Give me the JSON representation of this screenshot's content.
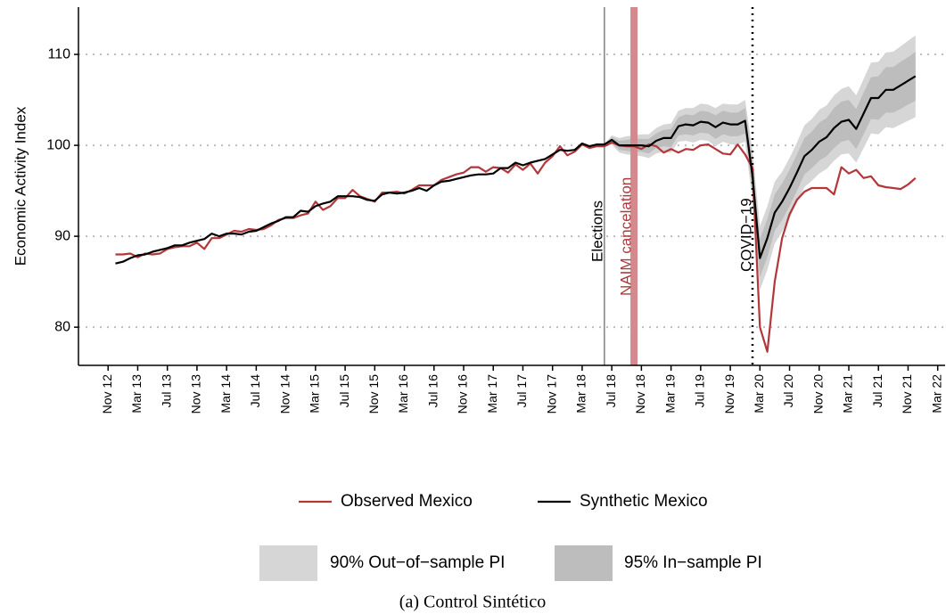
{
  "chart_data": {
    "type": "line",
    "ylabel": "Economic Activity Index",
    "caption": "(a) Control Sintético",
    "ylim": [
      75.8,
      115.2
    ],
    "yticks": [
      80,
      90,
      100,
      110
    ],
    "xlim": [
      "Jul 12",
      "Apr 22"
    ],
    "xticks": [
      "Nov 12",
      "Mar 13",
      "Jul 13",
      "Nov 13",
      "Mar 14",
      "Jul 14",
      "Nov 14",
      "Mar 15",
      "Jul 15",
      "Nov 15",
      "Mar 16",
      "Jul 16",
      "Nov 16",
      "Mar 17",
      "Jul 17",
      "Nov 17",
      "Mar 18",
      "Jul 18",
      "Nov 18",
      "Mar 19",
      "Jul 19",
      "Nov 19",
      "Mar 20",
      "Jul 20",
      "Nov 20",
      "Mar 21",
      "Jul 21",
      "Nov 21",
      "Mar 22"
    ],
    "grid": true,
    "x": [
      "Dec 12",
      "Jan 13",
      "Feb 13",
      "Mar 13",
      "Apr 13",
      "May 13",
      "Jun 13",
      "Jul 13",
      "Aug 13",
      "Sep 13",
      "Oct 13",
      "Nov 13",
      "Dec 13",
      "Jan 14",
      "Feb 14",
      "Mar 14",
      "Apr 14",
      "May 14",
      "Jun 14",
      "Jul 14",
      "Aug 14",
      "Sep 14",
      "Oct 14",
      "Nov 14",
      "Dec 14",
      "Jan 15",
      "Feb 15",
      "Mar 15",
      "Apr 15",
      "May 15",
      "Jun 15",
      "Jul 15",
      "Aug 15",
      "Sep 15",
      "Oct 15",
      "Nov 15",
      "Dec 15",
      "Jan 16",
      "Feb 16",
      "Mar 16",
      "Apr 16",
      "May 16",
      "Jun 16",
      "Jul 16",
      "Aug 16",
      "Sep 16",
      "Oct 16",
      "Nov 16",
      "Dec 16",
      "Jan 17",
      "Feb 17",
      "Mar 17",
      "Apr 17",
      "May 17",
      "Jun 17",
      "Jul 17",
      "Aug 17",
      "Sep 17",
      "Oct 17",
      "Nov 17",
      "Dec 17",
      "Jan 18",
      "Feb 18",
      "Mar 18",
      "Apr 18",
      "May 18",
      "Jun 18",
      "Jul 18",
      "Aug 18",
      "Sep 18",
      "Oct 18",
      "Nov 18",
      "Dec 18",
      "Jan 19",
      "Feb 19",
      "Mar 19",
      "Apr 19",
      "May 19",
      "Jun 19",
      "Jul 19",
      "Aug 19",
      "Sep 19",
      "Oct 19",
      "Nov 19",
      "Dec 19",
      "Jan 20",
      "Feb 20",
      "Mar 20",
      "Apr 20",
      "May 20",
      "Jun 20",
      "Jul 20",
      "Aug 20",
      "Sep 20",
      "Oct 20",
      "Nov 20",
      "Dec 20",
      "Jan 21",
      "Feb 21",
      "Mar 21",
      "Apr 21",
      "May 21",
      "Jun 21",
      "Jul 21",
      "Aug 21",
      "Sep 21",
      "Oct 21",
      "Nov 21",
      "Dec 21"
    ],
    "series": [
      {
        "name": "Observed Mexico",
        "color": "#b2373a",
        "values": [
          88.0,
          88.0,
          88.1,
          87.7,
          88.1,
          88.0,
          88.1,
          88.6,
          88.8,
          88.9,
          88.9,
          89.3,
          88.6,
          89.8,
          89.8,
          90.2,
          90.6,
          90.5,
          90.8,
          90.7,
          90.8,
          91.2,
          91.8,
          92.0,
          92.0,
          92.3,
          92.5,
          93.8,
          92.9,
          93.3,
          94.2,
          94.2,
          95.1,
          94.4,
          94.1,
          93.8,
          94.8,
          94.8,
          94.9,
          94.7,
          95.1,
          95.6,
          95.6,
          95.6,
          96.2,
          96.5,
          96.8,
          97.0,
          97.6,
          97.6,
          97.1,
          97.6,
          97.5,
          97.0,
          97.9,
          97.3,
          98.0,
          96.9,
          98.1,
          98.8,
          99.9,
          98.9,
          99.3,
          100.1,
          99.7,
          99.9,
          99.9,
          100.3,
          100.0,
          99.9,
          99.9,
          99.6,
          100.1,
          99.9,
          99.2,
          99.6,
          99.2,
          99.6,
          99.5,
          100.0,
          100.1,
          99.6,
          99.1,
          99.0,
          100.1,
          99.0,
          97.5,
          80.0,
          77.3,
          85.0,
          89.8,
          92.4,
          94.0,
          94.9,
          95.3,
          95.3,
          95.3,
          94.6,
          97.6,
          96.9,
          97.3,
          96.4,
          96.6,
          95.6,
          95.4,
          95.3,
          95.2,
          95.7,
          96.4
        ]
      },
      {
        "name": "Synthetic Mexico",
        "color": "#000000",
        "values": [
          87.0,
          87.2,
          87.6,
          87.9,
          88.0,
          88.3,
          88.5,
          88.7,
          89.0,
          89.0,
          89.3,
          89.5,
          89.7,
          90.3,
          90.0,
          90.3,
          90.3,
          90.2,
          90.5,
          90.6,
          91.0,
          91.4,
          91.7,
          92.1,
          92.1,
          92.8,
          92.7,
          93.3,
          93.6,
          93.8,
          94.4,
          94.4,
          94.4,
          94.3,
          94.0,
          93.9,
          94.6,
          94.8,
          94.7,
          94.8,
          95.0,
          95.3,
          95.0,
          95.6,
          96.0,
          96.1,
          96.3,
          96.5,
          96.7,
          96.8,
          96.8,
          96.9,
          97.5,
          97.5,
          98.1,
          97.8,
          98.1,
          98.3,
          98.5,
          99.0,
          99.5,
          99.4,
          99.5,
          100.2,
          99.9,
          100.1,
          100.1,
          100.6,
          100.0,
          100.0,
          100.0,
          100.0,
          99.9,
          100.5,
          100.8,
          100.8,
          102.1,
          102.3,
          102.2,
          102.6,
          102.5,
          102.0,
          102.5,
          102.3,
          102.3,
          102.7,
          96.6,
          87.6,
          89.8,
          92.6,
          93.8,
          95.3,
          97.0,
          98.8,
          99.5,
          100.4,
          100.9,
          101.9,
          102.6,
          102.8,
          101.8,
          103.5,
          105.2,
          105.2,
          106.1,
          106.1,
          106.6,
          107.1,
          107.6
        ]
      }
    ],
    "bands": [
      {
        "name": "90% Out−of−sample PI",
        "color": "#d6d6d6",
        "x": [
          "Jun 18",
          "Jul 18",
          "Aug 18",
          "Sep 18",
          "Oct 18",
          "Nov 18",
          "Dec 18",
          "Jan 19",
          "Feb 19",
          "Mar 19",
          "Apr 19",
          "May 19",
          "Jun 19",
          "Jul 19",
          "Aug 19",
          "Sep 19",
          "Oct 19",
          "Nov 19",
          "Dec 19",
          "Jan 20",
          "Feb 20",
          "Mar 20",
          "Apr 20",
          "May 20",
          "Jun 20",
          "Jul 20",
          "Aug 20",
          "Sep 20",
          "Oct 20",
          "Nov 20",
          "Dec 20",
          "Jan 21",
          "Feb 21",
          "Mar 21",
          "Apr 21",
          "May 21",
          "Jun 21",
          "Jul 21",
          "Aug 21",
          "Sep 21",
          "Oct 21",
          "Nov 21",
          "Dec 21"
        ],
        "lower": [
          100.1,
          100.1,
          99.2,
          99.0,
          98.9,
          98.8,
          98.6,
          99.1,
          99.3,
          99.2,
          100.4,
          100.5,
          100.3,
          100.6,
          100.5,
          99.9,
          100.4,
          100.1,
          100.1,
          100.4,
          93.8,
          84.1,
          86.3,
          89.2,
          90.5,
          92.0,
          93.7,
          95.4,
          96.1,
          96.9,
          97.4,
          98.3,
          99.0,
          99.1,
          98.1,
          99.7,
          101.3,
          101.2,
          102.0,
          101.9,
          102.3,
          102.7,
          103.1
        ],
        "upper": [
          100.1,
          101.1,
          100.8,
          101.0,
          101.1,
          101.2,
          101.2,
          101.9,
          102.3,
          102.4,
          103.8,
          104.1,
          104.1,
          104.6,
          104.5,
          104.1,
          104.6,
          104.5,
          104.5,
          105.0,
          99.4,
          91.1,
          93.3,
          96.0,
          97.1,
          98.6,
          100.3,
          102.2,
          102.9,
          103.9,
          104.4,
          105.5,
          106.2,
          106.5,
          105.5,
          107.3,
          109.1,
          109.2,
          110.2,
          110.3,
          110.9,
          111.5,
          112.1
        ]
      },
      {
        "name": "95% In−sample PI",
        "color": "#bdbdbd",
        "x": [
          "Jun 18",
          "Jul 18",
          "Aug 18",
          "Sep 18",
          "Oct 18",
          "Nov 18",
          "Dec 18",
          "Jan 19",
          "Feb 19",
          "Mar 19",
          "Apr 19",
          "May 19",
          "Jun 19",
          "Jul 19",
          "Aug 19",
          "Sep 19",
          "Oct 19",
          "Nov 19",
          "Dec 19",
          "Jan 20",
          "Feb 20",
          "Mar 20",
          "Apr 20",
          "May 20",
          "Jun 20",
          "Jul 20",
          "Aug 20",
          "Sep 20",
          "Oct 20",
          "Nov 20",
          "Dec 20",
          "Jan 21",
          "Feb 21",
          "Mar 21",
          "Apr 21",
          "May 21",
          "Jun 21",
          "Jul 21",
          "Aug 21",
          "Sep 21",
          "Oct 21",
          "Nov 21",
          "Dec 21"
        ],
        "lower": [
          100.1,
          100.3,
          99.5,
          99.4,
          99.3,
          99.3,
          99.1,
          99.7,
          99.9,
          99.8,
          101.1,
          101.2,
          101.1,
          101.4,
          101.3,
          100.7,
          101.2,
          101.0,
          101.0,
          101.3,
          94.9,
          85.5,
          87.7,
          90.6,
          91.8,
          93.3,
          95.0,
          96.8,
          97.5,
          98.3,
          98.8,
          99.7,
          100.4,
          100.6,
          99.6,
          101.2,
          102.9,
          102.8,
          103.6,
          103.6,
          104.0,
          104.5,
          104.9
        ],
        "upper": [
          100.1,
          100.9,
          100.5,
          100.6,
          100.7,
          100.7,
          100.7,
          101.3,
          101.7,
          101.8,
          103.1,
          103.4,
          103.3,
          103.8,
          103.7,
          103.3,
          103.8,
          103.6,
          103.6,
          104.1,
          98.3,
          89.7,
          91.9,
          94.6,
          95.8,
          97.3,
          99.0,
          100.8,
          101.5,
          102.5,
          103.0,
          104.1,
          104.8,
          105.0,
          104.0,
          105.8,
          107.5,
          107.6,
          108.6,
          108.6,
          109.2,
          109.7,
          110.3
        ]
      }
    ],
    "annotations": [
      {
        "label": "Elections",
        "x": "Jun 18",
        "color": "#808080",
        "text_color": "#000000"
      },
      {
        "label": "NAIM cancelation",
        "x": "Oct 18",
        "color": "#d48a8c",
        "text_color": "#b2373a"
      },
      {
        "label": "COVID−19",
        "x": "Feb 20",
        "color": "#000000",
        "text_color": "#000000"
      }
    ]
  }
}
